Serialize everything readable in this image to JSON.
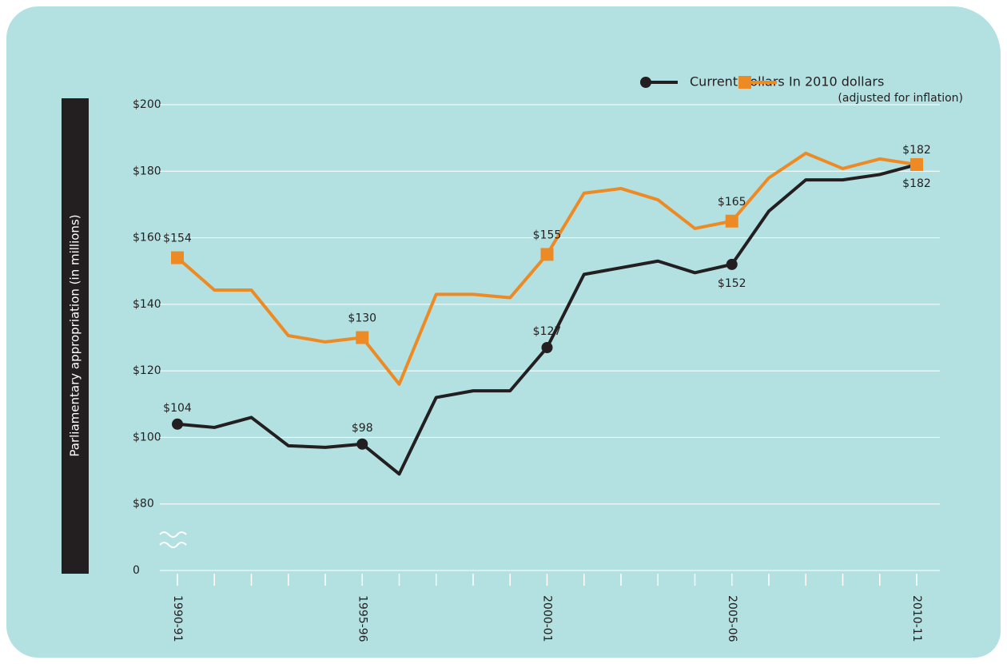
{
  "chart_data": {
    "type": "line",
    "y_axis_label": "Parliamentary appropriation (in millions)",
    "legend_note": "(adjusted for inflation)",
    "categories": [
      "1990-91",
      null,
      null,
      null,
      null,
      "1995-96",
      null,
      null,
      null,
      null,
      "2000-01",
      null,
      null,
      null,
      null,
      "2005-06",
      null,
      null,
      null,
      null,
      "2010-11"
    ],
    "series": [
      {
        "name": "Current dollars",
        "color": "#231f20",
        "marker": "circle",
        "values": [
          104,
          103,
          106,
          97.5,
          97,
          98,
          89,
          112,
          114,
          114,
          127,
          149,
          151,
          153,
          149.5,
          152,
          168,
          177.4,
          177.4,
          179,
          182
        ],
        "value_labels": [
          "$104",
          null,
          null,
          null,
          null,
          "$98",
          null,
          null,
          null,
          null,
          "$127",
          null,
          null,
          null,
          null,
          "$152",
          null,
          null,
          null,
          null,
          "$182"
        ]
      },
      {
        "name": "In 2010 dollars",
        "color": "#ee8a23",
        "marker": "square",
        "values": [
          154,
          144.3,
          144.3,
          130.6,
          128.7,
          130,
          116,
          143,
          143,
          142,
          155,
          173.4,
          174.8,
          171.4,
          162.8,
          165,
          178,
          185.4,
          180.8,
          183.7,
          182
        ],
        "value_labels": [
          "$154",
          null,
          null,
          null,
          null,
          "$130",
          null,
          null,
          null,
          null,
          "$155",
          null,
          null,
          null,
          null,
          "$165",
          null,
          null,
          null,
          null,
          "$182"
        ]
      }
    ],
    "ylim": [
      0,
      200
    ],
    "y_break": [
      0,
      60
    ],
    "yticks": [
      0,
      {
        "value": 80,
        "label": "$80"
      },
      {
        "value": 100,
        "label": "$100"
      },
      {
        "value": 120,
        "label": "$120"
      },
      {
        "value": 140,
        "label": "$140"
      },
      {
        "value": 160,
        "label": "$160"
      },
      {
        "value": 180,
        "label": "$180"
      },
      {
        "value": 200,
        "label": "$200"
      }
    ],
    "grid": true,
    "legend": "top-right"
  }
}
